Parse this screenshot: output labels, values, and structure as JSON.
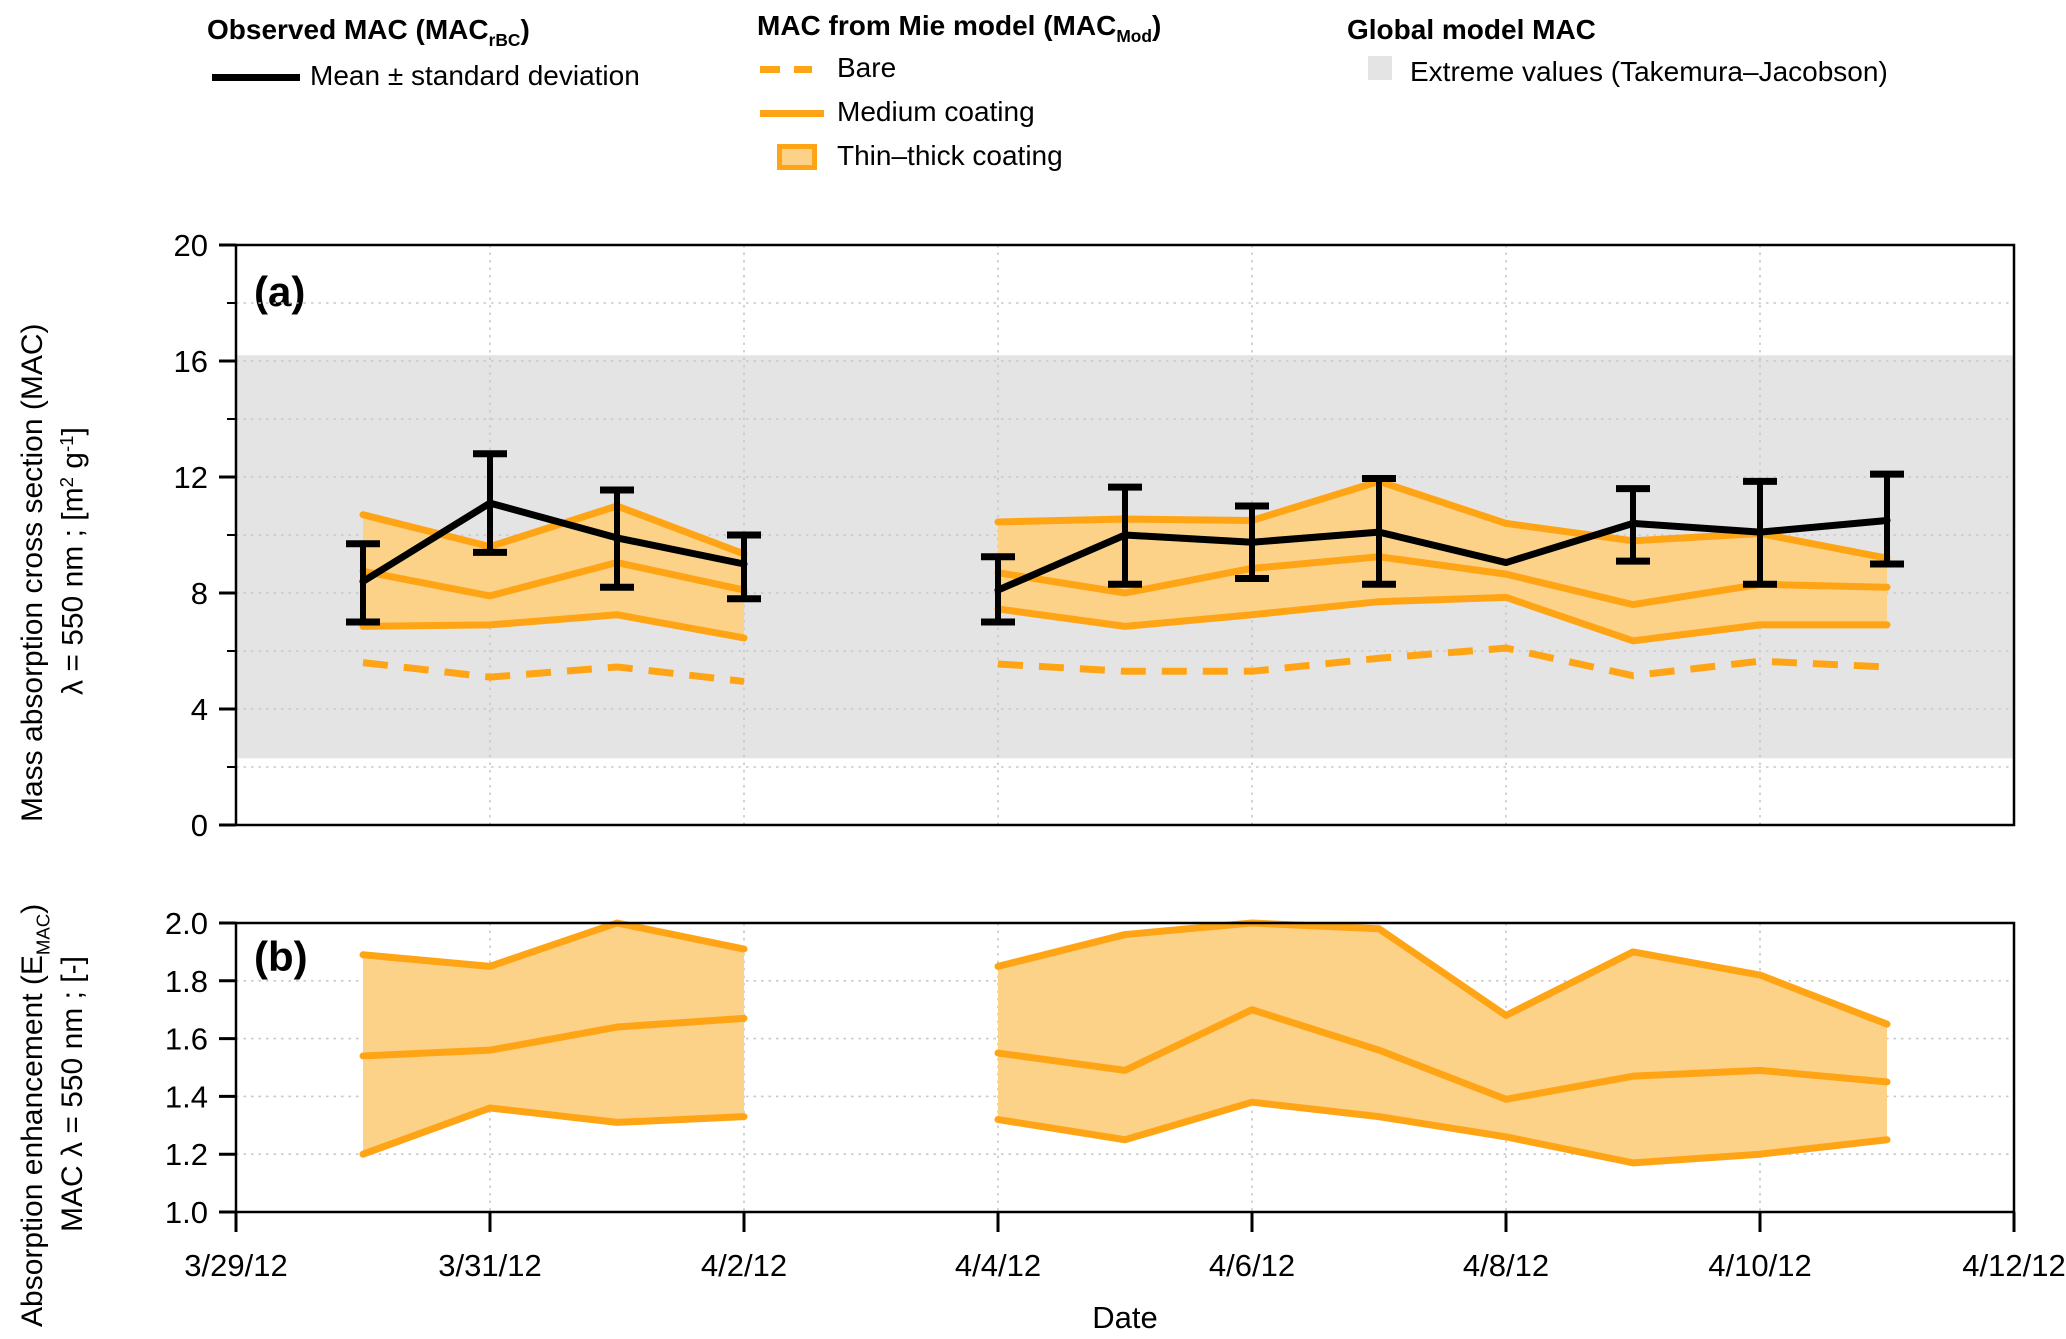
{
  "legend": {
    "observed": {
      "header_a": "Observed MAC (MAC",
      "header_sub": "rBC",
      "header_b": ")",
      "item": "Mean ± standard deviation"
    },
    "mie": {
      "header_a": "MAC from Mie model (MAC",
      "header_sub": "Mod",
      "header_b": ")",
      "item_bare": "Bare",
      "item_medium": "Medium coating",
      "item_thick": "Thin–thick coating"
    },
    "global": {
      "header": "Global model MAC",
      "item": "Extreme values (Takemura–Jacobson)"
    }
  },
  "labels": {
    "panel_a_tag": "(a)",
    "panel_b_tag": "(b)",
    "panel_a_ylabel_1": "Mass absorption cross section (MAC)",
    "panel_a_ylabel_2a": "λ = 550 nm ; [m",
    "panel_a_ylabel_2b": "2",
    "panel_a_ylabel_2c": " g",
    "panel_a_ylabel_2d": "-1",
    "panel_a_ylabel_2e": "]",
    "panel_b_ylabel_1a": "Absorption enhancement (E",
    "panel_b_ylabel_1b": "MAC",
    "panel_b_ylabel_1c": ")",
    "panel_b_ylabel_2": "MAC  λ = 550 nm ; [-]",
    "x_label": "Date"
  },
  "colors": {
    "orange": "#FFA515",
    "band_fill": "#FCD289",
    "gray_band": "#E4E4E4",
    "black": "#000000",
    "grid": "#C8C8C8"
  },
  "x_axis": {
    "label": "Date",
    "ticks": [
      {
        "label": "3/29/12",
        "day": 0
      },
      {
        "label": "3/31/12",
        "day": 2
      },
      {
        "label": "4/2/12",
        "day": 4
      },
      {
        "label": "4/4/12",
        "day": 6
      },
      {
        "label": "4/6/12",
        "day": 8
      },
      {
        "label": "4/8/12",
        "day": 10
      },
      {
        "label": "4/10/12",
        "day": 12
      },
      {
        "label": "4/12/12",
        "day": 14
      }
    ],
    "grid_days": [
      2,
      4,
      6,
      8,
      10,
      12
    ]
  },
  "chart_data": [
    {
      "type": "line",
      "panel": "a",
      "ylabel": "Mass absorption cross section (MAC) λ = 550 nm ; [m2 g-1]",
      "ylim": [
        0,
        20
      ],
      "yticks": [
        {
          "v": 0,
          "label": "0"
        },
        {
          "v": 4,
          "label": "4"
        },
        {
          "v": 8,
          "label": "8"
        },
        {
          "v": 12,
          "label": "12"
        },
        {
          "v": 16,
          "label": "16"
        },
        {
          "v": 20,
          "label": "20"
        }
      ],
      "yticks_minor": [
        2,
        6,
        10,
        14,
        18
      ],
      "ygrid": [
        2,
        4,
        6,
        8,
        10,
        12,
        14,
        16,
        18
      ],
      "gray_band": [
        2.3,
        16.2
      ],
      "legend_note": "gray band = global model extreme values (Takemura–Jacobson)",
      "segments": [
        {
          "dates": [
            "3/30/12",
            "3/31/12",
            "4/1/12",
            "4/2/12"
          ],
          "day_index": [
            1,
            2,
            3,
            4
          ],
          "observed_mean": [
            8.4,
            11.1,
            9.9,
            9.0
          ],
          "observed_sd_lo": [
            7.0,
            9.4,
            8.2,
            7.8
          ],
          "observed_sd_hi": [
            9.7,
            12.8,
            11.55,
            10.0
          ],
          "mie_thick_upper": [
            10.7,
            9.6,
            11.0,
            9.35
          ],
          "mie_medium": [
            8.75,
            7.9,
            9.05,
            8.1
          ],
          "mie_thin_lower": [
            6.85,
            6.9,
            7.25,
            6.45
          ],
          "mie_bare": [
            5.6,
            5.1,
            5.45,
            4.95
          ]
        },
        {
          "dates": [
            "4/4/12",
            "4/5/12",
            "4/6/12",
            "4/7/12",
            "4/8/12",
            "4/9/12",
            "4/10/12",
            "4/11/12"
          ],
          "day_index": [
            6,
            7,
            8,
            9,
            10,
            11,
            12,
            13
          ],
          "observed_mean": [
            8.1,
            10.0,
            9.75,
            10.1,
            9.05,
            10.4,
            10.1,
            10.5
          ],
          "observed_sd_lo": [
            7.0,
            8.3,
            8.5,
            8.3,
            null,
            9.1,
            8.3,
            9.0
          ],
          "observed_sd_hi": [
            9.25,
            11.65,
            11.0,
            11.95,
            null,
            11.6,
            11.85,
            12.1
          ],
          "mie_thick_upper": [
            10.45,
            10.55,
            10.5,
            11.85,
            10.4,
            9.8,
            10.05,
            9.2
          ],
          "mie_medium": [
            8.7,
            8.0,
            8.85,
            9.25,
            8.65,
            7.6,
            8.3,
            8.2
          ],
          "mie_thin_lower": [
            7.45,
            6.85,
            7.25,
            7.7,
            7.85,
            6.35,
            6.9,
            6.9
          ],
          "mie_bare": [
            5.55,
            5.3,
            5.3,
            5.75,
            6.1,
            5.15,
            5.65,
            5.45
          ]
        }
      ]
    },
    {
      "type": "area",
      "panel": "b",
      "ylabel": "Absorption enhancement (EMAC) MAC λ = 550 nm ; [-]",
      "ylim": [
        1.0,
        2.0
      ],
      "yticks": [
        {
          "v": 1.0,
          "label": "1.0"
        },
        {
          "v": 1.2,
          "label": "1.2"
        },
        {
          "v": 1.4,
          "label": "1.4"
        },
        {
          "v": 1.6,
          "label": "1.6"
        },
        {
          "v": 1.8,
          "label": "1.8"
        },
        {
          "v": 2.0,
          "label": "2.0"
        }
      ],
      "ygrid": [
        1.2,
        1.4,
        1.6,
        1.8
      ],
      "segments": [
        {
          "dates": [
            "3/30/12",
            "3/31/12",
            "4/1/12",
            "4/2/12"
          ],
          "day_index": [
            1,
            2,
            3,
            4
          ],
          "upper": [
            1.89,
            1.85,
            2.0,
            1.91
          ],
          "mid": [
            1.54,
            1.56,
            1.64,
            1.67
          ],
          "lower": [
            1.2,
            1.36,
            1.31,
            1.33
          ]
        },
        {
          "dates": [
            "4/4/12",
            "4/5/12",
            "4/6/12",
            "4/7/12",
            "4/8/12",
            "4/9/12",
            "4/10/12",
            "4/11/12"
          ],
          "day_index": [
            6,
            7,
            8,
            9,
            10,
            11,
            12,
            13
          ],
          "upper": [
            1.85,
            1.96,
            2.0,
            1.98,
            1.68,
            1.9,
            1.82,
            1.65
          ],
          "mid": [
            1.55,
            1.49,
            1.7,
            1.56,
            1.39,
            1.47,
            1.49,
            1.45
          ],
          "lower": [
            1.32,
            1.25,
            1.38,
            1.33,
            1.26,
            1.17,
            1.2,
            1.25
          ]
        }
      ]
    }
  ]
}
